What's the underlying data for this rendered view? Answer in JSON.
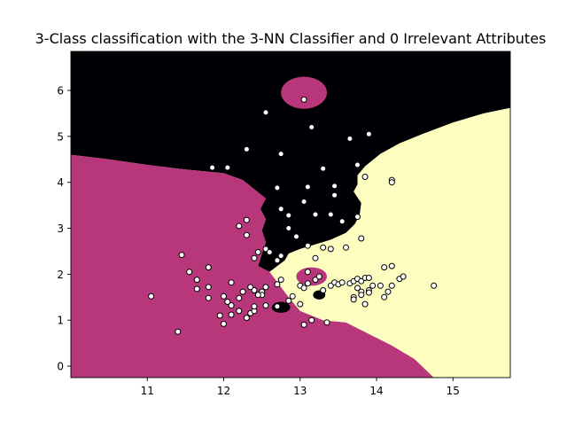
{
  "chart_data": {
    "type": "scatter",
    "title": "3-Class classification with the 3-NN Classifier and 0 Irrelevant Attributes",
    "xlabel": "",
    "ylabel": "",
    "xlim": [
      10.0,
      15.75
    ],
    "ylim": [
      -0.25,
      6.85
    ],
    "xticks": [
      11,
      12,
      13,
      14,
      15
    ],
    "yticks": [
      0,
      1,
      2,
      3,
      4,
      5,
      6
    ],
    "grid": false,
    "legend": "none",
    "colors": {
      "class_0": "#000004",
      "class_1": "#b7377a",
      "class_2": "#fcfdbf",
      "point_fill": "#ffffff",
      "point_edge": "#000000",
      "axis": "#000000"
    },
    "decision_regions": [
      {
        "class": "class_0",
        "boundary": [
          [
            10.0,
            6.85
          ],
          [
            15.75,
            6.85
          ],
          [
            15.75,
            5.62
          ],
          [
            15.4,
            5.5
          ],
          [
            15.0,
            5.3
          ],
          [
            14.6,
            5.05
          ],
          [
            14.3,
            4.85
          ],
          [
            14.05,
            4.62
          ],
          [
            13.85,
            4.35
          ],
          [
            13.75,
            4.15
          ],
          [
            13.75,
            3.95
          ],
          [
            13.7,
            3.8
          ],
          [
            13.8,
            3.55
          ],
          [
            13.78,
            3.3
          ],
          [
            13.72,
            3.1
          ],
          [
            13.6,
            2.9
          ],
          [
            13.4,
            2.75
          ],
          [
            13.2,
            2.65
          ],
          [
            13.0,
            2.55
          ],
          [
            12.85,
            2.45
          ],
          [
            12.8,
            2.3
          ],
          [
            12.6,
            2.05
          ],
          [
            12.45,
            2.18
          ],
          [
            12.5,
            2.45
          ],
          [
            12.55,
            2.7
          ],
          [
            12.5,
            2.95
          ],
          [
            12.55,
            3.2
          ],
          [
            12.48,
            3.42
          ],
          [
            12.55,
            3.65
          ],
          [
            12.4,
            3.85
          ],
          [
            12.25,
            4.05
          ],
          [
            12.0,
            4.2
          ],
          [
            11.5,
            4.28
          ],
          [
            11.0,
            4.38
          ],
          [
            10.5,
            4.5
          ],
          [
            10.0,
            4.6
          ]
        ]
      },
      {
        "class": "class_1",
        "boundary": [
          [
            10.0,
            4.6
          ],
          [
            10.5,
            4.5
          ],
          [
            11.0,
            4.38
          ],
          [
            11.5,
            4.28
          ],
          [
            12.0,
            4.2
          ],
          [
            12.25,
            4.05
          ],
          [
            12.4,
            3.85
          ],
          [
            12.55,
            3.65
          ],
          [
            12.48,
            3.42
          ],
          [
            12.55,
            3.2
          ],
          [
            12.5,
            2.95
          ],
          [
            12.55,
            2.7
          ],
          [
            12.5,
            2.45
          ],
          [
            12.45,
            2.18
          ],
          [
            12.6,
            2.05
          ],
          [
            12.85,
            1.5
          ],
          [
            13.0,
            1.2
          ],
          [
            13.3,
            1.0
          ],
          [
            13.6,
            0.95
          ],
          [
            13.9,
            0.7
          ],
          [
            14.2,
            0.45
          ],
          [
            14.5,
            0.15
          ],
          [
            14.75,
            -0.25
          ],
          [
            10.0,
            -0.25
          ]
        ]
      },
      {
        "class": "class_2",
        "boundary": [
          [
            15.75,
            5.62
          ],
          [
            15.75,
            -0.25
          ],
          [
            14.75,
            -0.25
          ],
          [
            14.5,
            0.15
          ],
          [
            14.2,
            0.45
          ],
          [
            13.9,
            0.7
          ],
          [
            13.6,
            0.95
          ],
          [
            13.3,
            1.0
          ],
          [
            13.0,
            1.2
          ],
          [
            12.85,
            1.5
          ],
          [
            12.6,
            2.05
          ],
          [
            12.8,
            2.3
          ],
          [
            12.85,
            2.45
          ],
          [
            13.0,
            2.55
          ],
          [
            13.2,
            2.65
          ],
          [
            13.4,
            2.75
          ],
          [
            13.6,
            2.9
          ],
          [
            13.72,
            3.1
          ],
          [
            13.78,
            3.3
          ],
          [
            13.8,
            3.55
          ],
          [
            13.7,
            3.8
          ],
          [
            13.75,
            3.95
          ],
          [
            13.75,
            4.15
          ],
          [
            13.85,
            4.35
          ],
          [
            14.05,
            4.62
          ],
          [
            14.3,
            4.85
          ],
          [
            14.6,
            5.05
          ],
          [
            15.0,
            5.3
          ],
          [
            15.4,
            5.5
          ]
        ]
      }
    ],
    "islands": [
      {
        "class": "class_1",
        "center": [
          13.05,
          5.95
        ],
        "radii": [
          0.3,
          0.35
        ]
      },
      {
        "class": "class_1",
        "center": [
          13.15,
          1.95
        ],
        "radii": [
          0.2,
          0.2
        ]
      },
      {
        "class": "class_0",
        "center": [
          12.75,
          1.28
        ],
        "radii": [
          0.12,
          0.12
        ]
      },
      {
        "class": "class_0",
        "center": [
          13.25,
          1.55
        ],
        "radii": [
          0.08,
          0.1
        ]
      }
    ],
    "points": {
      "x": [
        13.05,
        12.55,
        13.15,
        13.65,
        13.9,
        12.3,
        11.85,
        12.05,
        12.75,
        13.3,
        13.75,
        13.85,
        14.2,
        14.2,
        12.7,
        13.1,
        13.45,
        13.45,
        13.05,
        12.75,
        12.85,
        13.4,
        13.55,
        13.75,
        12.2,
        12.3,
        13.2,
        12.85,
        12.95,
        13.1,
        12.3,
        13.6,
        13.3,
        13.4,
        13.8,
        12.45,
        12.55,
        12.6,
        12.4,
        12.75,
        13.2,
        12.7,
        11.45,
        11.8,
        11.55,
        11.65,
        11.65,
        11.8,
        12.0,
        12.1,
        12.25,
        12.2,
        12.35,
        12.4,
        12.5,
        12.5,
        12.55,
        12.45,
        12.7,
        12.75,
        11.05,
        11.8,
        12.05,
        12.1,
        12.2,
        12.35,
        12.4,
        12.55,
        12.7,
        13.0,
        13.05,
        13.15,
        11.4,
        11.95,
        12.0,
        12.1,
        12.2,
        12.3,
        12.4,
        12.85,
        12.9,
        13.35,
        13.0,
        13.1,
        13.2,
        13.25,
        13.1,
        13.05,
        13.3,
        13.4,
        13.45,
        13.5,
        13.55,
        13.65,
        13.7,
        13.75,
        13.8,
        13.85,
        13.9,
        13.95,
        13.75,
        13.8,
        13.9,
        13.7,
        13.8,
        13.9,
        13.85,
        14.05,
        14.1,
        14.15,
        14.2,
        14.3,
        14.35,
        14.75,
        14.1,
        14.2,
        13.7
      ],
      "y": [
        5.8,
        5.52,
        5.2,
        4.95,
        5.05,
        4.72,
        4.32,
        4.32,
        4.62,
        4.3,
        4.38,
        4.12,
        4.05,
        4.0,
        3.88,
        3.9,
        3.92,
        3.72,
        3.58,
        3.42,
        3.28,
        3.3,
        3.15,
        3.25,
        3.05,
        3.18,
        3.3,
        3.0,
        2.82,
        2.62,
        2.85,
        2.58,
        2.58,
        2.55,
        2.78,
        2.48,
        2.55,
        2.48,
        2.35,
        2.4,
        2.35,
        2.3,
        2.42,
        2.15,
        2.05,
        1.88,
        1.68,
        1.72,
        1.52,
        1.82,
        1.62,
        1.48,
        1.72,
        1.65,
        1.62,
        1.55,
        1.72,
        1.55,
        1.78,
        1.88,
        1.52,
        1.48,
        1.4,
        1.32,
        1.2,
        1.15,
        1.2,
        1.32,
        1.3,
        1.35,
        0.9,
        1.0,
        0.75,
        1.1,
        0.92,
        1.12,
        1.2,
        1.05,
        1.3,
        1.42,
        1.52,
        0.95,
        1.75,
        1.8,
        1.88,
        1.95,
        2.05,
        1.7,
        1.65,
        1.75,
        1.82,
        1.78,
        1.82,
        1.8,
        1.85,
        1.9,
        1.85,
        1.92,
        1.92,
        1.75,
        1.7,
        1.62,
        1.65,
        1.5,
        1.55,
        1.6,
        1.35,
        1.75,
        1.5,
        1.62,
        1.75,
        1.9,
        1.95,
        1.75,
        2.15,
        2.18,
        1.45
      ]
    }
  }
}
